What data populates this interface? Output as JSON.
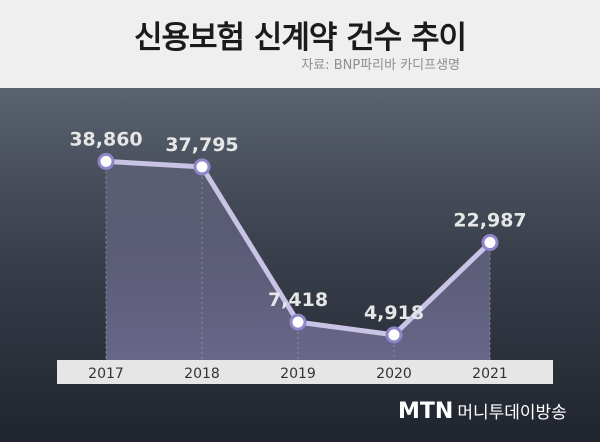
{
  "header": {
    "title": "신용보험 신계약 건수 추이",
    "source": "자료: BNP파리바 카디프생명"
  },
  "branding": {
    "logo": "MTN",
    "name": "머니투데이방송"
  },
  "colors": {
    "line": "#c9c3e6",
    "marker_fill": "#ffffff",
    "marker_stroke": "#8e86c7",
    "axis_bar": "#e6e6e6",
    "value_label": "#e6e6e6"
  },
  "chart_data": {
    "type": "line",
    "title": "신용보험 신계약 건수 추이",
    "categories": [
      "2017",
      "2018",
      "2019",
      "2020",
      "2021"
    ],
    "values": [
      38860,
      37795,
      7418,
      4918,
      22987
    ],
    "value_labels": [
      "38,860",
      "37,795",
      "7,418",
      "4,918",
      "22,987"
    ],
    "ylim": [
      0,
      45000
    ],
    "grid": false,
    "legend": "none"
  }
}
